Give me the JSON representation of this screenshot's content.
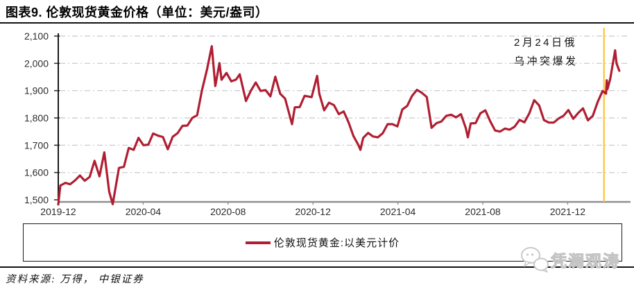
{
  "header": {
    "title": "图表9. 伦敦现货黄金价格（单位：美元/盎司）"
  },
  "annotation": {
    "line1": "2月24日俄",
    "line2": "乌冲突爆发"
  },
  "legend": {
    "label": "伦敦现货黄金:以美元计价"
  },
  "footer": {
    "source": "资料来源: 万得， 中银证券"
  },
  "watermark": {
    "name": "凭澜观涛",
    "icon": "chat-bubbles-icon"
  },
  "colors": {
    "line": "#B01E32",
    "event_line": "#FFC234",
    "grid": "#C6C6C6",
    "axis": "#333333",
    "bottom_axis": "#8F8F8F",
    "tick_text": "#2B2B2B"
  },
  "chart_data": {
    "type": "line",
    "title": "伦敦现货黄金价格",
    "unit": "美元/盎司",
    "ylim": [
      1500,
      2100
    ],
    "grid": "horizontal-dash-dot",
    "legend_position": "bottom-box",
    "x_epoch": "2019-12-31",
    "yticks": [
      {
        "value": 1500,
        "label": "1,500"
      },
      {
        "value": 1600,
        "label": "1,600"
      },
      {
        "value": 1700,
        "label": "1,700"
      },
      {
        "value": 1800,
        "label": "1,800"
      },
      {
        "value": 1900,
        "label": "1,900"
      },
      {
        "value": 2000,
        "label": "2,000"
      },
      {
        "value": 2100,
        "label": "2,100"
      }
    ],
    "xticks": [
      {
        "label": "2019-12",
        "month_offset": 0
      },
      {
        "label": "2020-04",
        "month_offset": 4
      },
      {
        "label": "2020-08",
        "month_offset": 8
      },
      {
        "label": "2020-12",
        "month_offset": 12
      },
      {
        "label": "2021-04",
        "month_offset": 16
      },
      {
        "label": "2021-08",
        "month_offset": 20
      },
      {
        "label": "2021-12",
        "month_offset": 24
      }
    ],
    "event_line": {
      "date": "2022-02-24",
      "label": "2月24日俄乌冲突爆发",
      "color": "#FFC234"
    },
    "series": [
      {
        "name": "伦敦现货黄金:以美元计价",
        "color": "#B01E32",
        "dates": [
          "2019-12-31",
          "2020-01-03",
          "2020-01-10",
          "2020-01-17",
          "2020-01-24",
          "2020-01-31",
          "2020-02-07",
          "2020-02-14",
          "2020-02-21",
          "2020-02-28",
          "2020-03-06",
          "2020-03-13",
          "2020-03-18",
          "2020-03-27",
          "2020-04-03",
          "2020-04-10",
          "2020-04-17",
          "2020-04-24",
          "2020-05-01",
          "2020-05-08",
          "2020-05-15",
          "2020-05-22",
          "2020-05-29",
          "2020-06-05",
          "2020-06-12",
          "2020-06-19",
          "2020-06-26",
          "2020-07-03",
          "2020-07-10",
          "2020-07-17",
          "2020-07-24",
          "2020-07-31",
          "2020-08-07",
          "2020-08-12",
          "2020-08-18",
          "2020-08-21",
          "2020-08-28",
          "2020-09-04",
          "2020-09-11",
          "2020-09-16",
          "2020-09-25",
          "2020-10-02",
          "2020-10-09",
          "2020-10-16",
          "2020-10-23",
          "2020-10-30",
          "2020-11-06",
          "2020-11-13",
          "2020-11-20",
          "2020-11-30",
          "2020-12-04",
          "2020-12-11",
          "2020-12-18",
          "2020-12-28",
          "2021-01-05",
          "2021-01-08",
          "2021-01-15",
          "2021-01-22",
          "2021-01-29",
          "2021-02-05",
          "2021-02-12",
          "2021-02-19",
          "2021-02-26",
          "2021-03-05",
          "2021-03-08",
          "2021-03-12",
          "2021-03-19",
          "2021-03-26",
          "2021-04-02",
          "2021-04-09",
          "2021-04-16",
          "2021-04-23",
          "2021-04-30",
          "2021-05-07",
          "2021-05-14",
          "2021-05-21",
          "2021-05-28",
          "2021-06-04",
          "2021-06-11",
          "2021-06-18",
          "2021-06-25",
          "2021-07-02",
          "2021-07-09",
          "2021-07-16",
          "2021-07-23",
          "2021-07-30",
          "2021-08-06",
          "2021-08-09",
          "2021-08-13",
          "2021-08-20",
          "2021-08-27",
          "2021-09-03",
          "2021-09-10",
          "2021-09-17",
          "2021-09-24",
          "2021-10-01",
          "2021-10-08",
          "2021-10-15",
          "2021-10-22",
          "2021-10-29",
          "2021-11-05",
          "2021-11-12",
          "2021-11-19",
          "2021-11-26",
          "2021-12-03",
          "2021-12-10",
          "2021-12-17",
          "2021-12-24",
          "2021-12-31",
          "2022-01-07",
          "2022-01-14",
          "2022-01-21",
          "2022-01-28",
          "2022-02-04",
          "2022-02-11",
          "2022-02-18",
          "2022-02-23",
          "2022-02-24",
          "2022-02-25",
          "2022-03-01",
          "2022-03-08",
          "2022-03-10",
          "2022-03-14"
        ],
        "values": [
          1483,
          1552,
          1562,
          1557,
          1571,
          1589,
          1570,
          1584,
          1643,
          1586,
          1674,
          1530,
          1484,
          1617,
          1621,
          1690,
          1683,
          1727,
          1700,
          1702,
          1743,
          1735,
          1730,
          1685,
          1731,
          1744,
          1771,
          1772,
          1800,
          1810,
          1902,
          1976,
          2063,
          1917,
          2001,
          1940,
          1965,
          1934,
          1941,
          1960,
          1862,
          1900,
          1930,
          1899,
          1902,
          1879,
          1951,
          1889,
          1871,
          1777,
          1839,
          1840,
          1881,
          1876,
          1954,
          1889,
          1828,
          1856,
          1847,
          1814,
          1824,
          1784,
          1734,
          1701,
          1683,
          1727,
          1745,
          1732,
          1729,
          1744,
          1777,
          1777,
          1769,
          1831,
          1844,
          1881,
          1903,
          1892,
          1877,
          1764,
          1781,
          1787,
          1808,
          1812,
          1802,
          1814,
          1763,
          1729,
          1780,
          1781,
          1817,
          1828,
          1788,
          1754,
          1750,
          1761,
          1757,
          1768,
          1793,
          1784,
          1817,
          1865,
          1846,
          1792,
          1783,
          1783,
          1798,
          1808,
          1829,
          1797,
          1818,
          1835,
          1791,
          1808,
          1859,
          1899,
          1889,
          1938,
          1905,
          1944,
          2048,
          2000,
          1973
        ]
      }
    ]
  }
}
